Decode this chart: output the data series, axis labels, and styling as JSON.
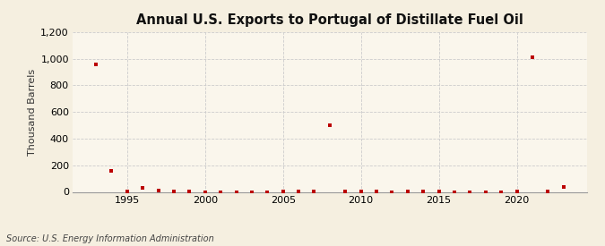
{
  "title": "Annual U.S. Exports to Portugal of Distillate Fuel Oil",
  "ylabel": "Thousand Barrels",
  "source": "Source: U.S. Energy Information Administration",
  "background_color": "#f5efe0",
  "plot_background_color": "#faf6ec",
  "grid_color": "#cccccc",
  "marker_color": "#bb0000",
  "years": [
    1993,
    1994,
    1995,
    1996,
    1997,
    1998,
    1999,
    2000,
    2001,
    2002,
    2003,
    2004,
    2005,
    2006,
    2007,
    2008,
    2009,
    2010,
    2011,
    2012,
    2013,
    2014,
    2015,
    2016,
    2017,
    2018,
    2019,
    2020,
    2021,
    2022,
    2023
  ],
  "values": [
    960,
    160,
    5,
    30,
    10,
    5,
    5,
    0,
    0,
    0,
    0,
    0,
    5,
    5,
    5,
    500,
    5,
    5,
    5,
    0,
    5,
    5,
    5,
    0,
    0,
    0,
    0,
    5,
    1010,
    5,
    35
  ],
  "ylim": [
    0,
    1200
  ],
  "yticks": [
    0,
    200,
    400,
    600,
    800,
    1000,
    1200
  ],
  "xlim": [
    1991.5,
    2024.5
  ],
  "xticks": [
    1995,
    2000,
    2005,
    2010,
    2015,
    2020
  ],
  "title_fontsize": 10.5,
  "ylabel_fontsize": 8,
  "tick_fontsize": 8,
  "source_fontsize": 7
}
